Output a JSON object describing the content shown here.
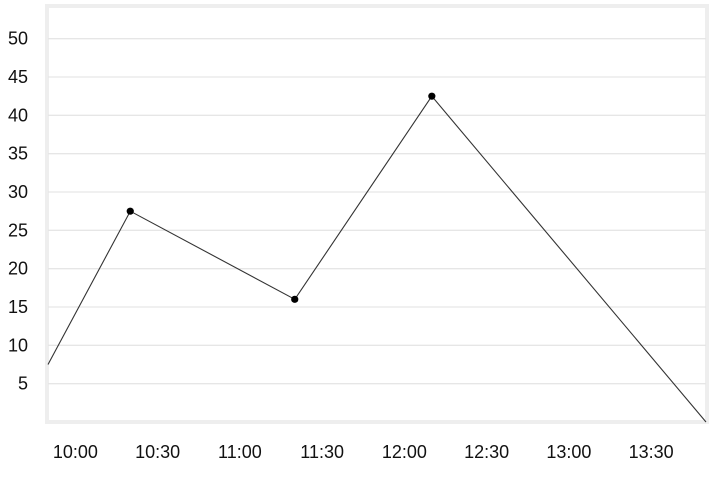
{
  "chart_data": {
    "type": "line",
    "title": "",
    "xlabel": "",
    "ylabel": "",
    "x_ticks": [
      "10:00",
      "10:30",
      "11:00",
      "11:30",
      "12:00",
      "12:30",
      "13:00",
      "13:30"
    ],
    "y_ticks": [
      "5",
      "10",
      "15",
      "20",
      "25",
      "30",
      "35",
      "40",
      "45",
      "50"
    ],
    "ylim": [
      0,
      54
    ],
    "xlim": [
      "09:50",
      "13:50"
    ],
    "grid": true,
    "legend": "none",
    "series": [
      {
        "x": [
          "09:50",
          "10:20",
          "11:20",
          "12:10",
          "13:50"
        ],
        "y": [
          7.5,
          27.5,
          16,
          42.5,
          0
        ],
        "markers": [
          false,
          true,
          true,
          true,
          false
        ]
      }
    ],
    "colors": {
      "line": "#333333",
      "marker": "#000000",
      "grid": "#e6e6e6",
      "frame": "#eeeeee",
      "text": "#111111"
    }
  }
}
